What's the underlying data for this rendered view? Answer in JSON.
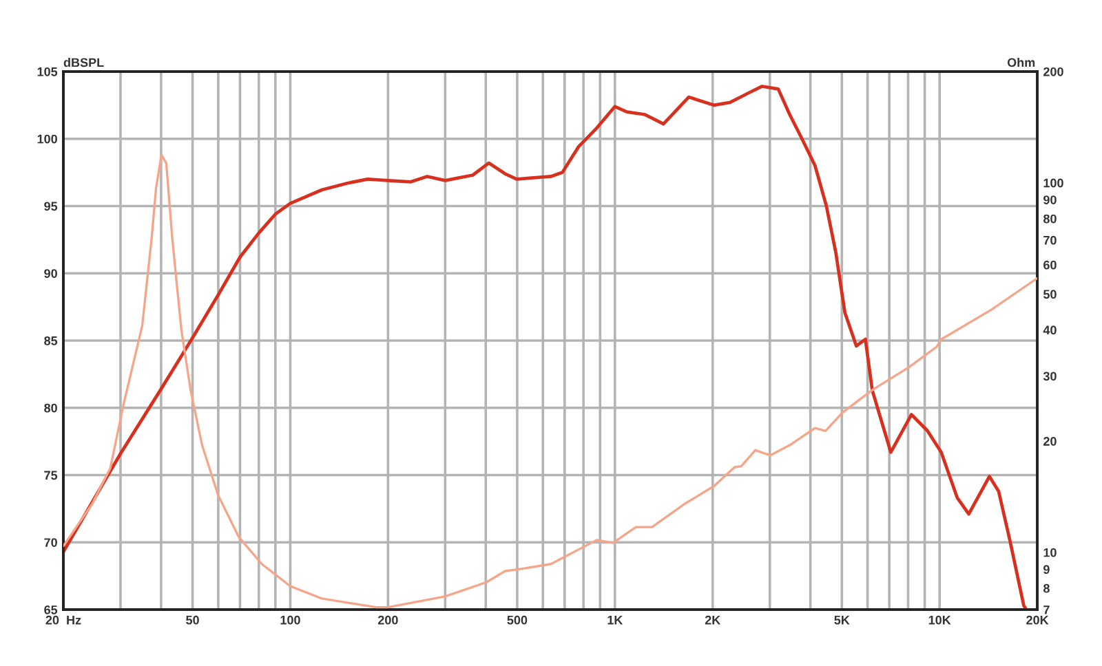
{
  "chart_data": [
    {
      "type": "line",
      "ylabel": "dBSPL",
      "log": "x",
      "grid": true,
      "xlim": [
        20,
        20000
      ],
      "xticks": [
        {
          "value": 20,
          "label": "20  Hz"
        },
        {
          "value": 30,
          "label": null
        },
        {
          "value": 40,
          "label": null
        },
        50,
        {
          "value": 60,
          "label": null
        },
        {
          "value": 70,
          "label": null
        },
        {
          "value": 80,
          "label": null
        },
        {
          "value": 90,
          "label": null
        },
        100,
        200,
        {
          "value": 300,
          "label": null
        },
        {
          "value": 400,
          "label": null
        },
        500,
        {
          "value": 600,
          "label": null
        },
        {
          "value": 700,
          "label": null
        },
        {
          "value": 800,
          "label": null
        },
        {
          "value": 900,
          "label": null
        },
        {
          "value": 1000,
          "label": "1K"
        },
        {
          "value": 2000,
          "label": "2K"
        },
        {
          "value": 3000,
          "label": null
        },
        {
          "value": 4000,
          "label": null
        },
        {
          "value": 5000,
          "label": "5K"
        },
        {
          "value": 6000,
          "label": null
        },
        {
          "value": 7000,
          "label": null
        },
        {
          "value": 8000,
          "label": null
        },
        {
          "value": 9000,
          "label": null
        },
        {
          "value": 10000,
          "label": "10K"
        },
        {
          "value": 20000,
          "label": "20K"
        }
      ],
      "ylim": [
        65,
        105
      ],
      "yticks": [
        65,
        70,
        75,
        80,
        85,
        90,
        95,
        100,
        105
      ],
      "series": [
        {
          "color": "#d7301f",
          "x": [
            20,
            30,
            40,
            50,
            60,
            70,
            80,
            90,
            100,
            125,
            150,
            173,
            200,
            235,
            264,
            300,
            365,
            409,
            459,
            498,
            635,
            689,
            772,
            879,
            1000,
            1088,
            1238,
            1411,
            1688,
            2017,
            2262,
            2576,
            2840,
            3184,
            3454,
            3750,
            4134,
            4480,
            4786,
            5106,
            5540,
            5908,
            6204,
            7075,
            8188,
            9172,
            10115,
            11340,
            12300,
            14240,
            15200,
            16480,
            18170,
            18500
          ],
          "values": [
            69.3,
            76.6,
            81.4,
            85.2,
            88.4,
            91.2,
            93.0,
            94.4,
            95.2,
            96.2,
            96.7,
            97.0,
            96.9,
            96.8,
            97.2,
            96.9,
            97.3,
            98.2,
            97.4,
            97.0,
            97.2,
            97.5,
            99.4,
            100.8,
            102.4,
            102.0,
            101.8,
            101.1,
            103.1,
            102.5,
            102.7,
            103.4,
            103.9,
            103.7,
            101.8,
            100.1,
            98.0,
            95.0,
            91.6,
            87.1,
            84.6,
            85.1,
            81.3,
            76.7,
            79.5,
            78.3,
            76.7,
            73.3,
            72.1,
            74.9,
            73.8,
            70.1,
            65.3,
            65.0
          ]
        }
      ]
    },
    {
      "type": "line",
      "ylabel": "Ohm",
      "log": "xy",
      "tick_labels": "y",
      "xlim": [
        20,
        20000
      ],
      "ylim": [
        7,
        200
      ],
      "yticks": [
        7,
        8,
        9,
        10,
        20,
        30,
        40,
        50,
        60,
        70,
        80,
        90,
        100,
        200
      ],
      "series": [
        {
          "color": "#f5a68a",
          "x": [
            20,
            24.5,
            27.9,
            30.7,
            35.0,
            37.4,
            38.6,
            40.1,
            41.5,
            43.3,
            46.2,
            49.3,
            53.5,
            59.9,
            69.4,
            81.7,
            100,
            125,
            184,
            200,
            300,
            402,
            459,
            506,
            635,
            879,
            986,
            1160,
            1300,
            1634,
            2017,
            2336,
            2450,
            2706,
            3012,
            3454,
            4134,
            4452,
            5024,
            6204,
            8054,
            9800,
            10115,
            14470,
            20000
          ],
          "values": [
            10.4,
            13.5,
            16.9,
            25.3,
            41.1,
            70.7,
            96.8,
            119,
            113,
            70.7,
            39.9,
            27.5,
            19.5,
            14.3,
            11.0,
            9.3,
            8.1,
            7.5,
            7.1,
            7.1,
            7.6,
            8.3,
            8.9,
            9.0,
            9.3,
            10.8,
            10.6,
            11.7,
            11.7,
            13.5,
            15.1,
            17.0,
            17.1,
            18.9,
            18.3,
            19.5,
            21.7,
            21.3,
            23.9,
            27.5,
            31.7,
            36.0,
            37.7,
            45.4,
            55.2
          ]
        }
      ]
    }
  ]
}
